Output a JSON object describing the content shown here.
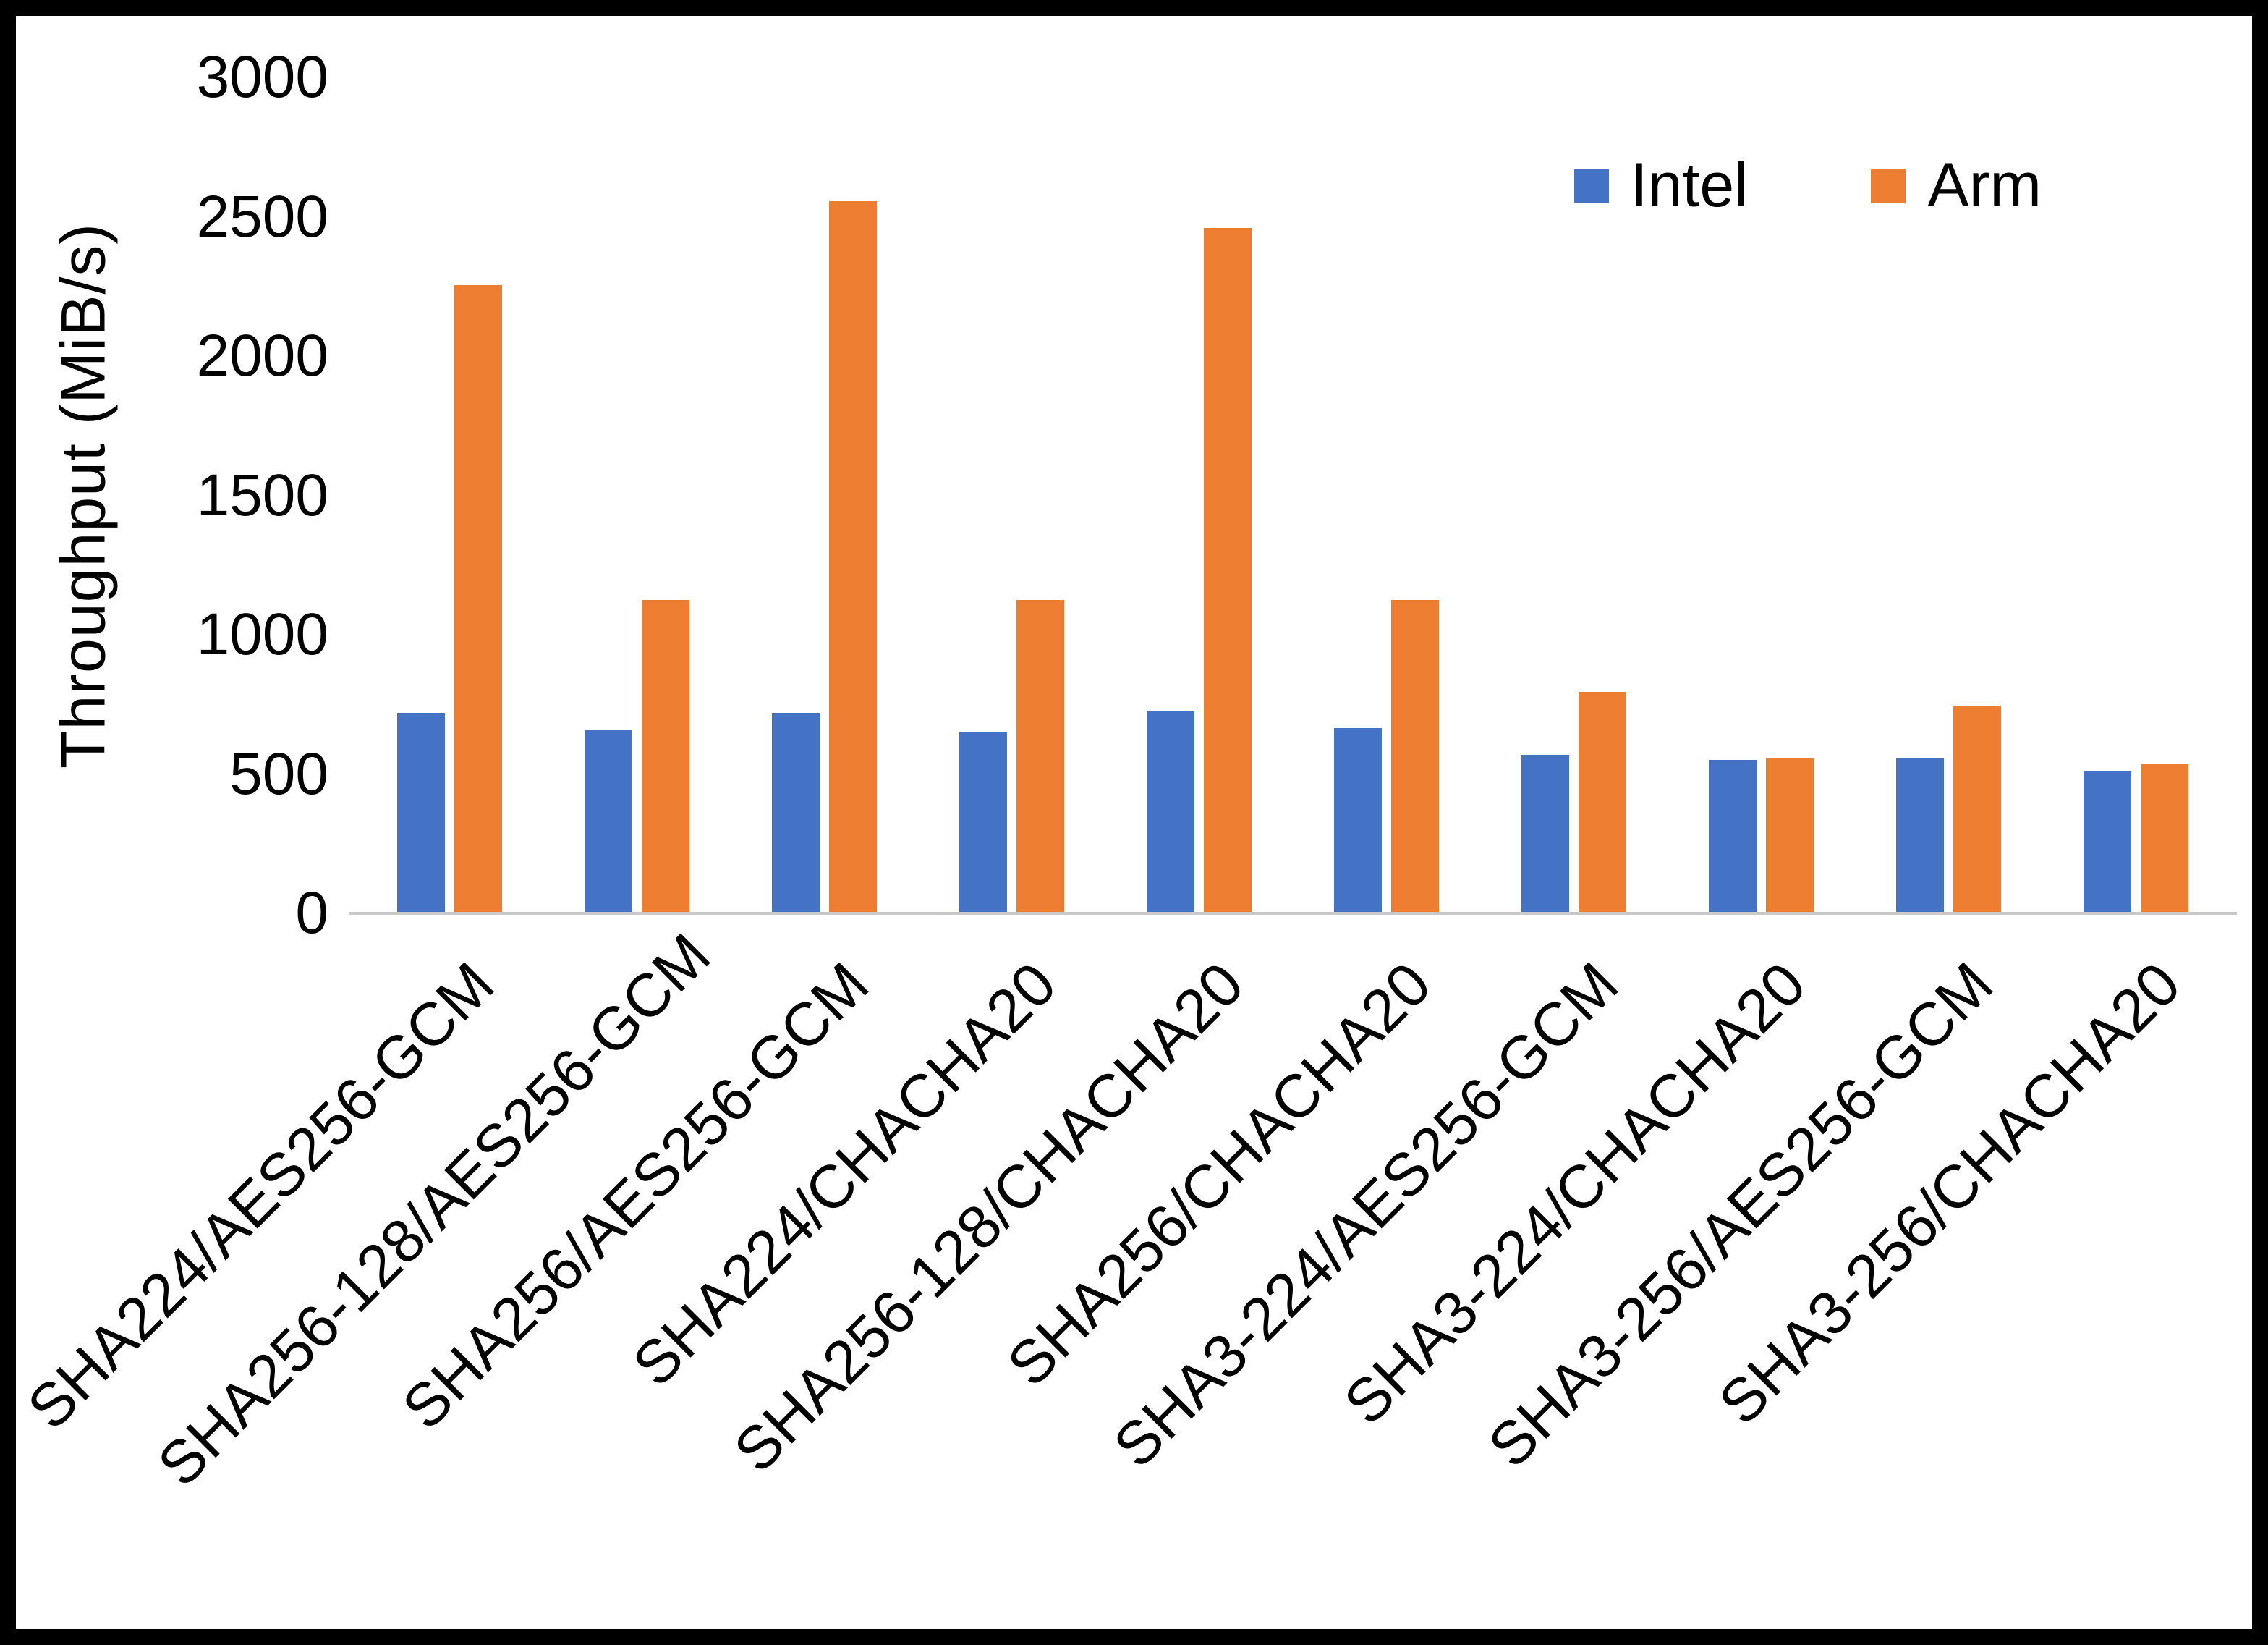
{
  "chart_data": {
    "type": "bar",
    "title": "",
    "xlabel": "",
    "ylabel": "Throughput (MiB/s)",
    "ylim": [
      0,
      3000
    ],
    "y_ticks": [
      0,
      500,
      1000,
      1500,
      2000,
      2500,
      3000
    ],
    "grid": false,
    "legend_position": "top-right",
    "categories": [
      "SHA224/AES256-GCM",
      "SHA256-128/AES256-GCM",
      "SHA256/AES256-GCM",
      "SHA224/CHACHA20",
      "SHA256-128/CHACHA20",
      "SHA256/CHACHA20",
      "SHA3-224/AES256-GCM",
      "SHA3-224/CHACHA20",
      "SHA3-256/AES256-GCM",
      "SHA3-256/CHACHA20"
    ],
    "series": [
      {
        "name": "Intel",
        "color": "#4472C4",
        "values": [
          720,
          660,
          720,
          650,
          725,
          665,
          570,
          550,
          555,
          510
        ]
      },
      {
        "name": "Arm",
        "color": "#ED7D31",
        "values": [
          2255,
          1125,
          2555,
          1125,
          2460,
          1125,
          795,
          555,
          745,
          535
        ]
      }
    ],
    "axis_line_color": "#c9c9c9"
  }
}
